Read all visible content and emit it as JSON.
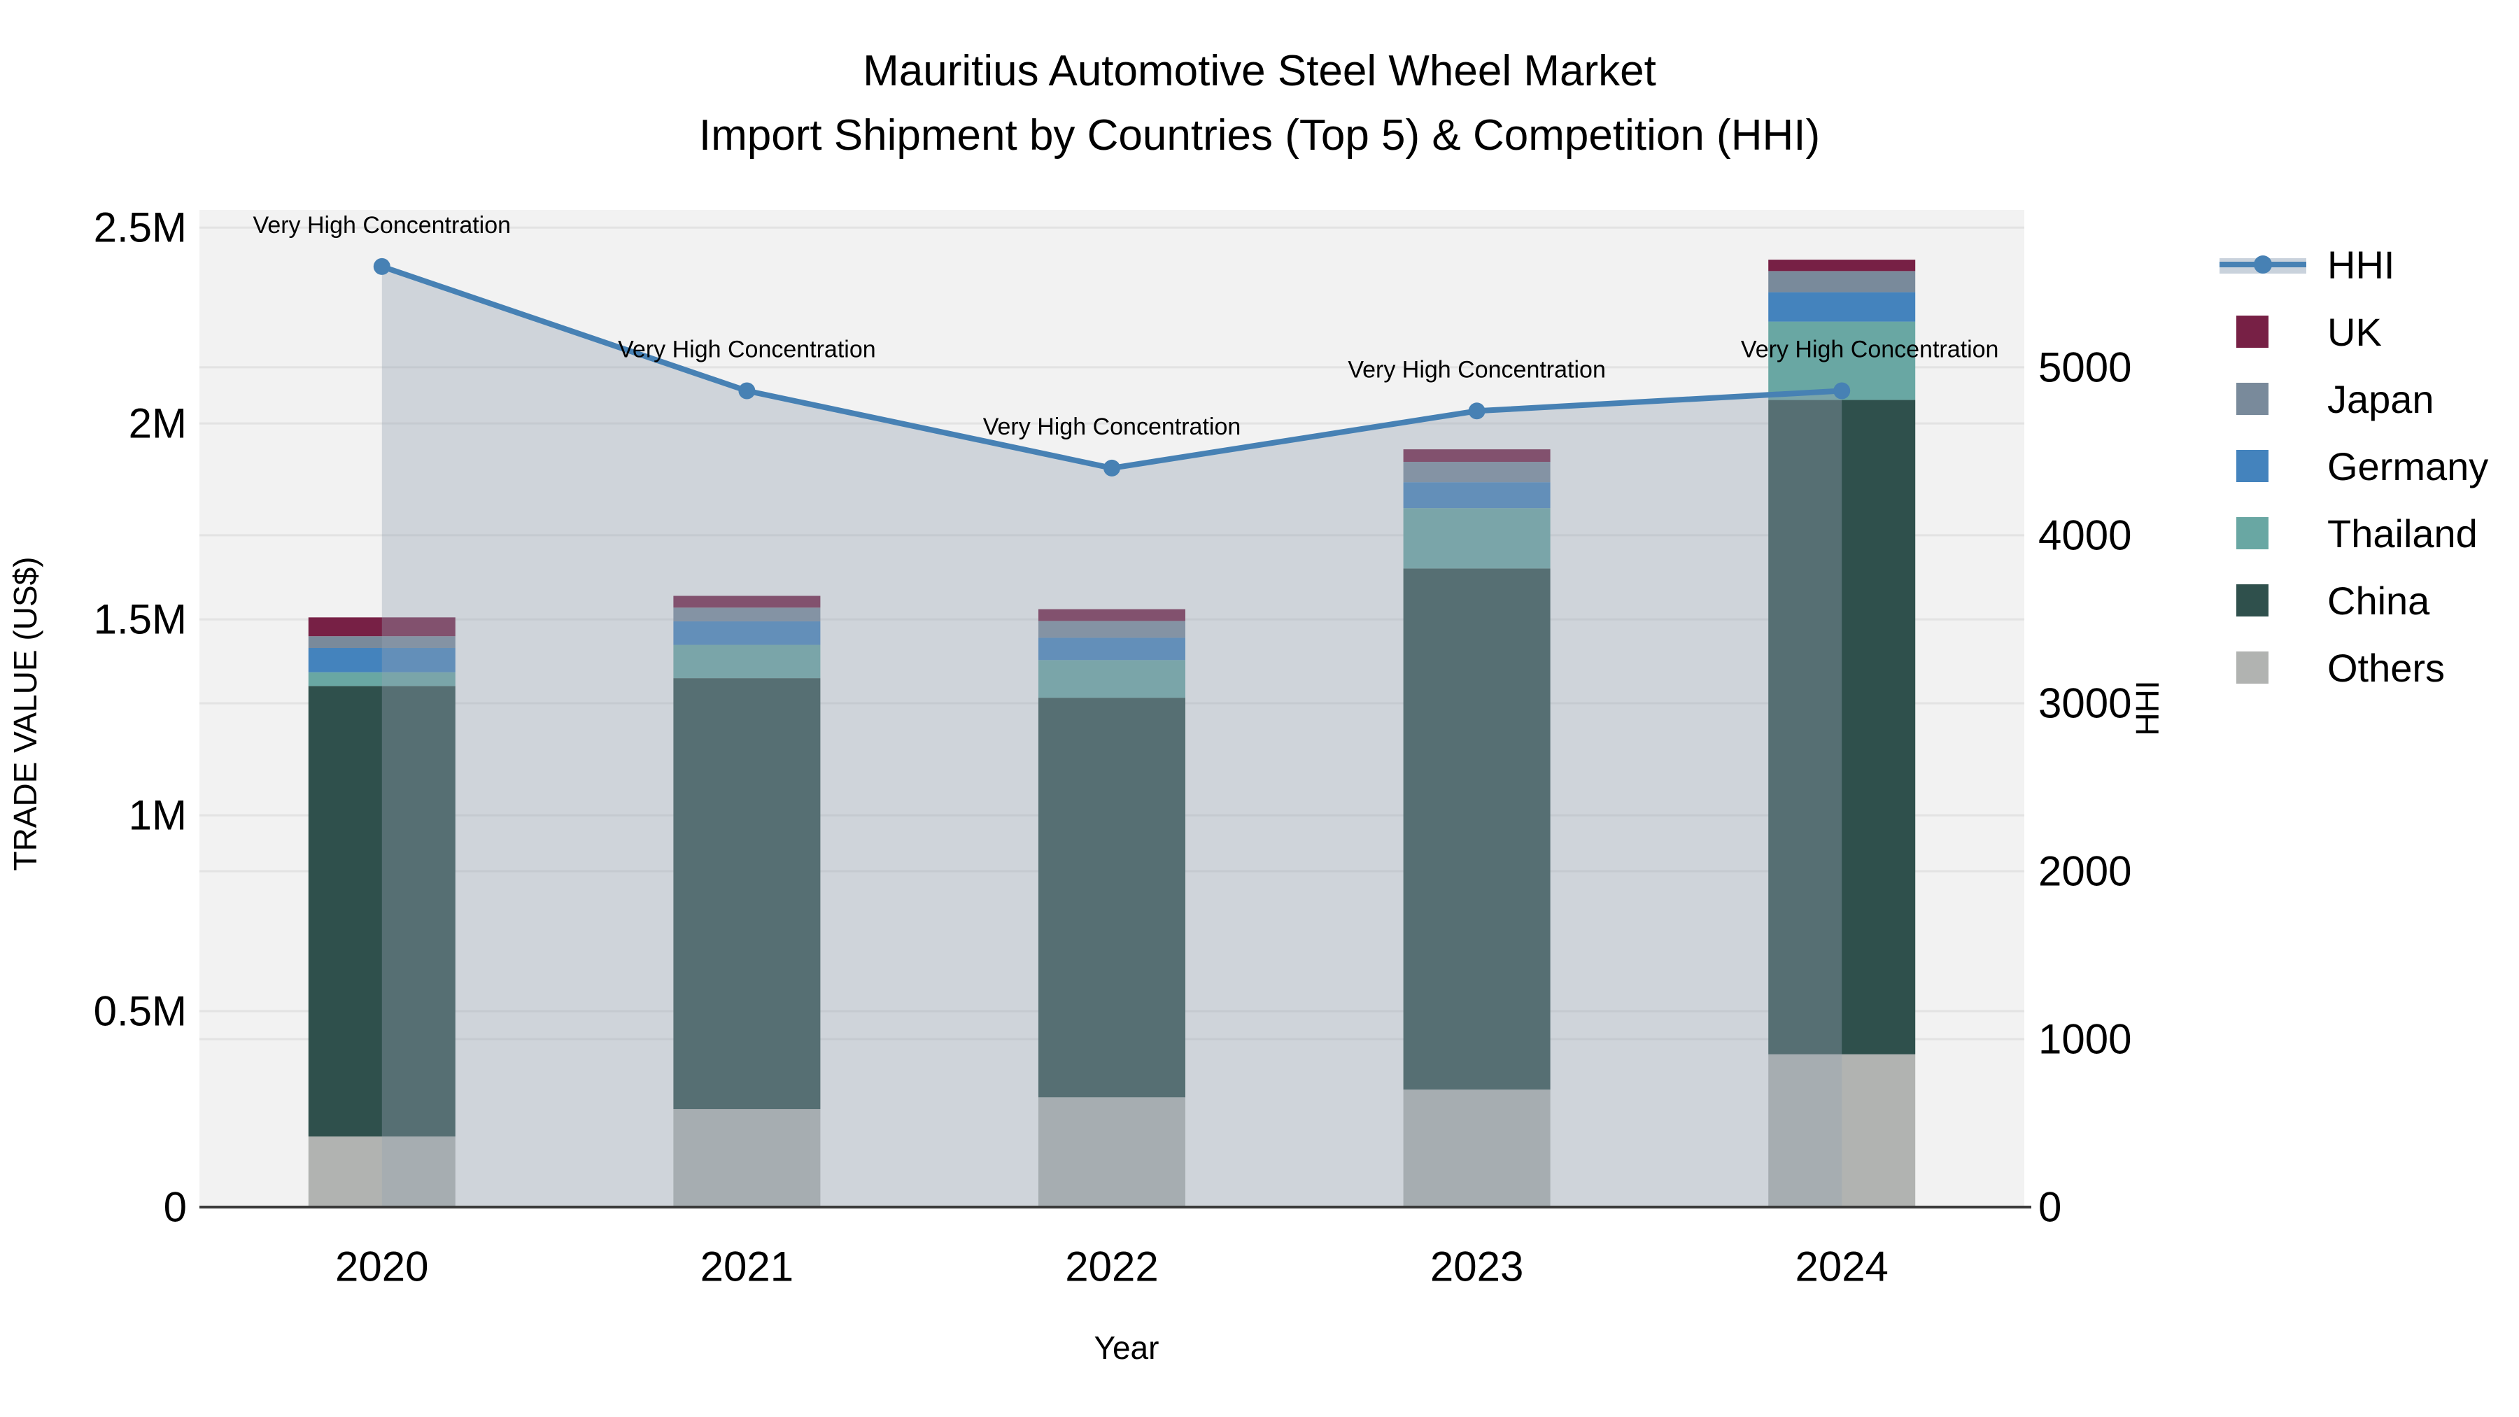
{
  "title": {
    "line1": "Mauritius Automotive Steel Wheel Market",
    "line2": "Import Shipment by Countries (Top 5) & Competition (HHI)"
  },
  "axis_titles": {
    "left": "TRADE VALUE (US$)",
    "bottom": "Year",
    "right": "HHI"
  },
  "legend": {
    "items": [
      {
        "label": "HHI",
        "type": "line",
        "color": "#4781b4",
        "band_color": "#c9d2dc"
      },
      {
        "label": "UK",
        "type": "square",
        "color": "#772045"
      },
      {
        "label": "Japan",
        "type": "square",
        "color": "#798a9b"
      },
      {
        "label": "Germany",
        "type": "square",
        "color": "#4483bd"
      },
      {
        "label": "Thailand",
        "type": "square",
        "color": "#69a7a3"
      },
      {
        "label": "China",
        "type": "square",
        "color": "#2f504c"
      },
      {
        "label": "Others",
        "type": "square",
        "color": "#b1b3b1"
      }
    ]
  },
  "colors": {
    "plot_bg": "#f2f2f2",
    "grid": "#e3e3e3",
    "axis_line": "#3a3a3a",
    "text": "#000000",
    "area_fill": "rgba(150,162,180,0.38)"
  },
  "chart_data": {
    "type": "combo",
    "subtype": "stacked-bar + line on secondary axis",
    "categories": [
      "2020",
      "2021",
      "2022",
      "2023",
      "2024"
    ],
    "xlabel": "Year",
    "ylabel_left": "TRADE VALUE (US$)",
    "ylabel_right": "HHI",
    "ylim_left": [
      0,
      2545000
    ],
    "ylim_right": [
      0,
      5937
    ],
    "y_left_ticks": [
      {
        "v": 0,
        "label": "0"
      },
      {
        "v": 500000,
        "label": "0.5M"
      },
      {
        "v": 1000000,
        "label": "1M"
      },
      {
        "v": 1500000,
        "label": "1.5M"
      },
      {
        "v": 2000000,
        "label": "2M"
      },
      {
        "v": 2500000,
        "label": "2.5M"
      }
    ],
    "y_right_ticks": [
      {
        "v": 0,
        "label": "0"
      },
      {
        "v": 1000,
        "label": "1000"
      },
      {
        "v": 2000,
        "label": "2000"
      },
      {
        "v": 3000,
        "label": "3000"
      },
      {
        "v": 4000,
        "label": "4000"
      },
      {
        "v": 5000,
        "label": "5000"
      }
    ],
    "grid": true,
    "legend_position": "right",
    "series": [
      {
        "name": "Others",
        "color": "#b1b3b1",
        "values": [
          180000,
          250000,
          280000,
          300000,
          390000
        ]
      },
      {
        "name": "China",
        "color": "#2f504c",
        "values": [
          1150000,
          1100000,
          1020000,
          1330000,
          1670000
        ]
      },
      {
        "name": "Thailand",
        "color": "#69a7a3",
        "values": [
          35000,
          85000,
          96000,
          154000,
          200000
        ]
      },
      {
        "name": "Germany",
        "color": "#4483bd",
        "values": [
          62000,
          60000,
          57000,
          66000,
          75000
        ]
      },
      {
        "name": "Japan",
        "color": "#798a9b",
        "values": [
          30000,
          35000,
          43000,
          52000,
          54000
        ]
      },
      {
        "name": "UK",
        "color": "#772045",
        "values": [
          48000,
          30000,
          30000,
          32000,
          29000
        ]
      }
    ],
    "line_series": {
      "name": "HHI",
      "color": "#4781b4",
      "marker_color": "#4781b4",
      "values": [
        5600,
        4860,
        4400,
        4740,
        4860
      ]
    },
    "annotations": [
      "Very High Concentration",
      "Very High Concentration",
      "Very High Concentration",
      "Very High Concentration",
      "Very High Concentration"
    ]
  }
}
